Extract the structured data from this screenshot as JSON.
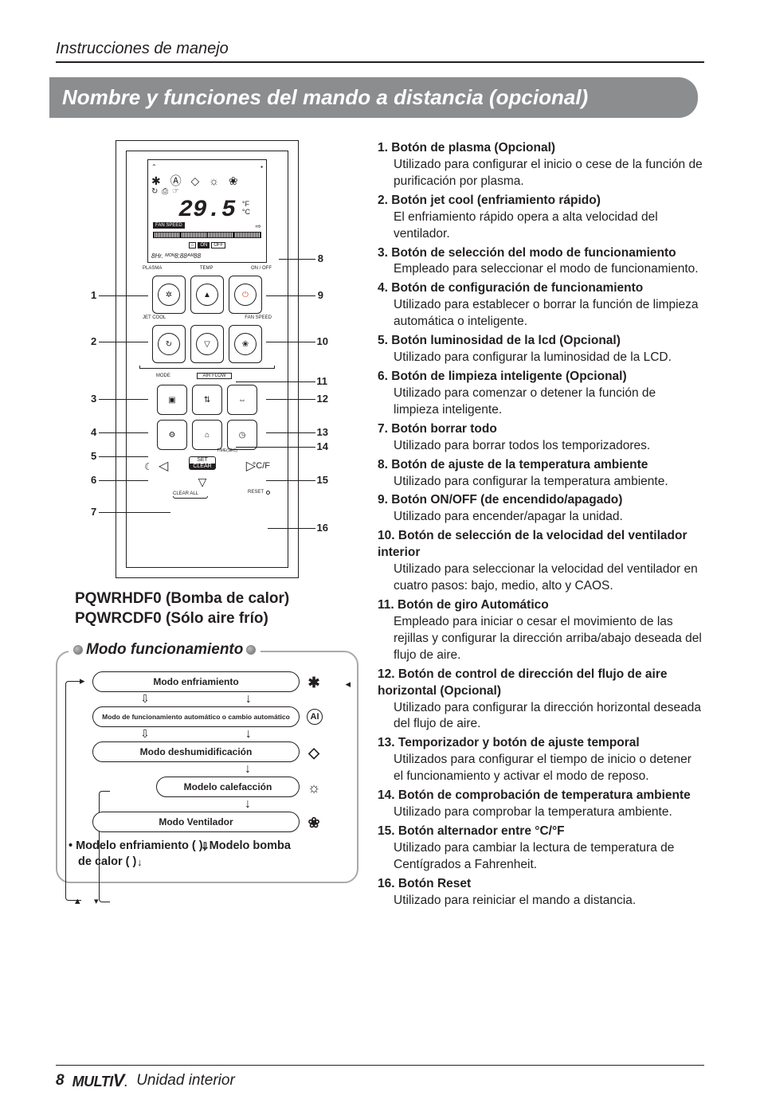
{
  "header": {
    "section_title": "Instrucciones de manejo"
  },
  "banner": {
    "title": "Nombre y funciones del mando a distancia (opcional)"
  },
  "remote": {
    "lcd": {
      "icons_row2": "✱ Ⓐ ◇ ☼ ❀",
      "icons_row3": "↻ ⎙ ☞",
      "temp": "29.5",
      "temp_unit_top": "°F",
      "temp_unit_bot": "°C",
      "fan_speed_label": "FAN SPEED",
      "onoff_house": "⌂",
      "onoff_on": "ON",
      "onoff_off": "OFF",
      "hr_line": "8Hr. ᴹᴼᴺ8:88ᴬᴹ88"
    },
    "labels": {
      "plasma": "PLASMA",
      "temp_lbl": "TEMP",
      "onoff_lbl": "ON / OFF",
      "jetcool": "JET COOL",
      "fanspeed": "FAN SPEED",
      "mode": "MODE",
      "airflow": "AIR FLOW",
      "set": "SET",
      "clear": "CLEAR",
      "clearall": "CLEAR ALL",
      "reset": "RESET",
      "timesec": "TIME(SEC)"
    },
    "numbers": [
      "1",
      "2",
      "3",
      "4",
      "5",
      "6",
      "7",
      "8",
      "9",
      "10",
      "11",
      "12",
      "13",
      "14",
      "15",
      "16"
    ]
  },
  "subhead": {
    "line1": "PQWRHDF0 (Bomba de calor)",
    "line2": "PQWRCDF0 (Sólo aire frío)"
  },
  "modo": {
    "title": "Modo funcionamiento",
    "pill1": "Modo enfriamiento",
    "pill2": "Modo de funcionamiento automático o cambio automático",
    "pill3": "Modo deshumidificación",
    "pill4": "Modelo calefacción",
    "pill5": "Modo Ventilador",
    "footnote_a": "• Modelo enfriamiento (    ), Modelo bomba",
    "footnote_b": "de calor (    )",
    "icon1": "✱",
    "icon2": "Ⓐ",
    "icon3": "◇",
    "icon4": "☼",
    "icon5": "❀"
  },
  "items": [
    {
      "n": "1.",
      "t": "Botón de plasma (Opcional)",
      "d": "Utilizado para configurar el inicio o cese de la función de purificación por plasma."
    },
    {
      "n": "2.",
      "t": "Botón jet cool (enfriamiento rápido)",
      "d": "El enfriamiento rápido opera a alta velocidad del ventilador."
    },
    {
      "n": "3.",
      "t": "Botón de selección del modo de funcionamiento",
      "d": "Empleado para seleccionar el modo de funcionamiento."
    },
    {
      "n": "4.",
      "t": "Botón de configuración de funcionamiento",
      "d": "Utilizado para establecer o borrar la función de limpieza automática o inteligente."
    },
    {
      "n": "5.",
      "t": "Botón luminosidad de la lcd (Opcional)",
      "d": "Utilizado para configurar la luminosidad de la LCD."
    },
    {
      "n": "6.",
      "t": "Botón de limpieza inteligente (Opcional)",
      "d": "Utilizado para comenzar o detener la función de limpieza inteligente."
    },
    {
      "n": "7.",
      "t": "Botón borrar todo",
      "d": "Utilizado para borrar todos los temporizadores."
    },
    {
      "n": "8.",
      "t": "Botón de ajuste de la temperatura ambiente",
      "d": "Utilizado para configurar la temperatura ambiente."
    },
    {
      "n": "9.",
      "t": "Botón ON/OFF (de encendido/apagado)",
      "d": "Utilizado para encender/apagar la unidad."
    },
    {
      "n": "10.",
      "t": "Botón de selección de la velocidad del ventilador interior",
      "d": "Utilizado para seleccionar la velocidad del ventilador en cuatro pasos: bajo, medio, alto y CAOS."
    },
    {
      "n": "11.",
      "t": "Botón de giro Automático",
      "d": "Empleado para iniciar o cesar el movimiento de las rejillas y configurar la dirección arriba/abajo deseada del flujo de aire."
    },
    {
      "n": "12.",
      "t": "Botón de control de dirección del flujo de aire horizontal (Opcional)",
      "d": "Utilizado para configurar la dirección horizontal deseada del flujo de aire."
    },
    {
      "n": "13.",
      "t": "Temporizador y botón de ajuste temporal",
      "d": "Utilizados para configurar el tiempo de inicio o detener el funcionamiento y activar el modo de reposo."
    },
    {
      "n": "14.",
      "t": "Botón de comprobación de temperatura ambiente",
      "d": "Utilizado para comprobar la temperatura ambiente."
    },
    {
      "n": "15.",
      "t": "Botón alternador entre  °C/°F",
      "d": "Utilizado para cambiar la lectura de temperatura de Centígrados a Fahrenheit."
    },
    {
      "n": "16.",
      "t": "Botón Reset",
      "d": "Utilizado para reiniciar el mando a distancia."
    }
  ],
  "footer": {
    "page": "8",
    "brand": "MULTI",
    "brand_v": "V",
    "brand_sep": ".",
    "tail": "Unidad interior"
  },
  "colors": {
    "banner_bg": "#8b8d8f",
    "mode_border": "#a8a9ab",
    "text": "#231f20"
  }
}
